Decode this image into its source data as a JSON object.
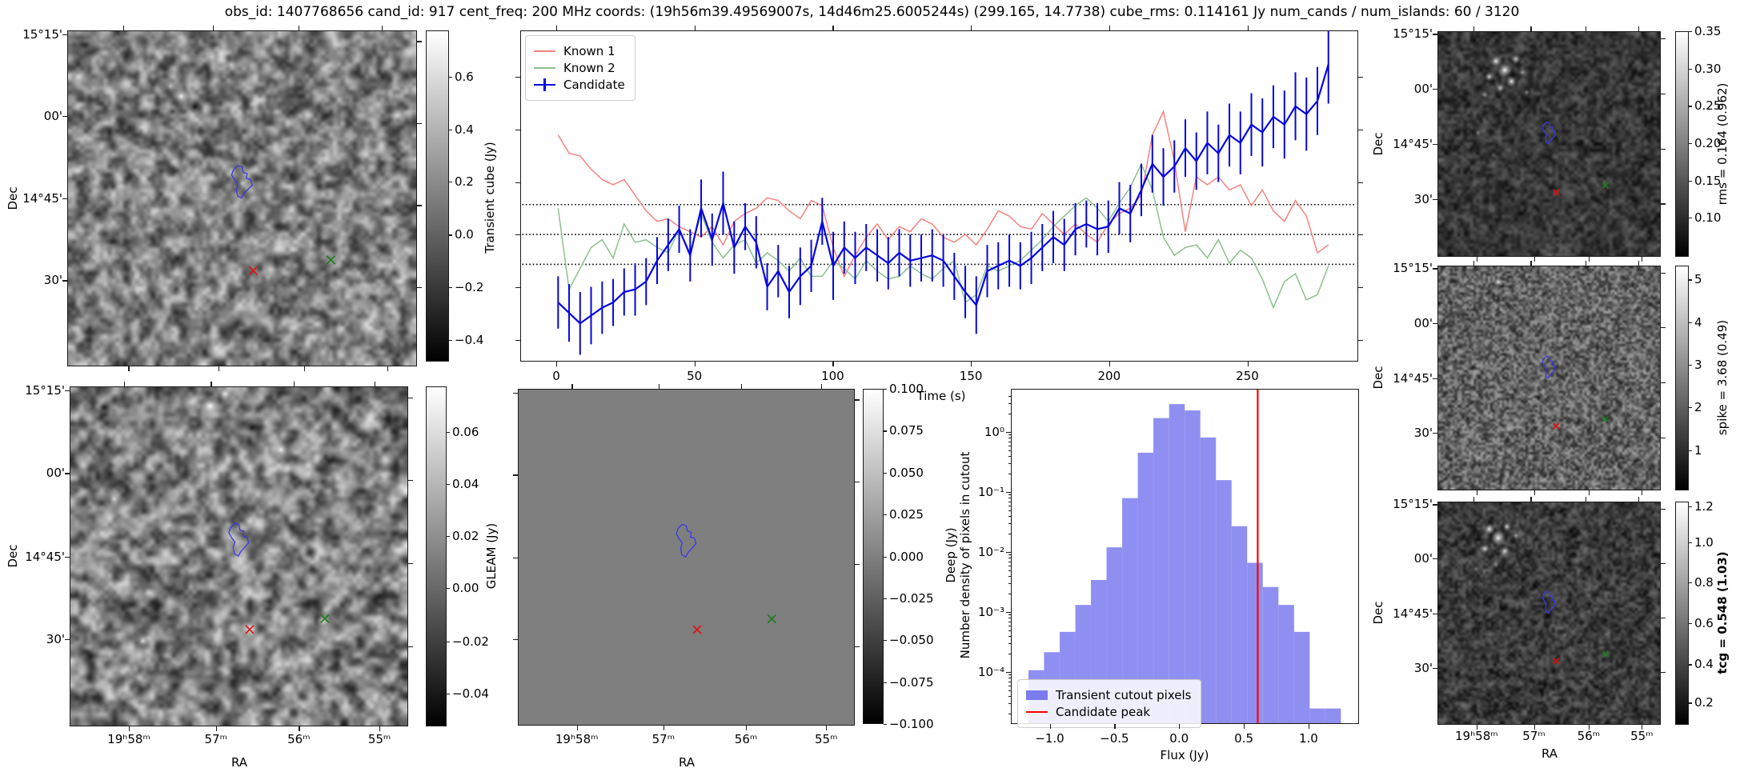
{
  "title": "obs_id: 1407768656 cand_id: 917 cent_freq: 200 MHz coords: (19h56m39.49569007s, 14d46m25.6005244s) (299.165, 14.7738) cube_rms: 0.114161 Jy num_cands / num_islands: 60 / 3120",
  "colors": {
    "known1": "#f4837d",
    "known2": "#8cbf8c",
    "candidate": "#0505e0",
    "histogram_fill": "#7b7bee",
    "candidate_peak_line": "#ff0000",
    "threshold_lines": "#000000",
    "contour": "#3a3ae0",
    "known1_marker": "#dd1111",
    "known2_marker": "#1d7a1d"
  },
  "axes": {
    "dec_label": "Dec",
    "ra_label": "RA",
    "dec_ticks": [
      "15°15'",
      "00'",
      "14°45'",
      "30'"
    ],
    "ra_ticks": [
      "19ʰ58ᵐ",
      "57ᵐ",
      "56ᵐ",
      "55ᵐ"
    ]
  },
  "colorbars": {
    "transient_cube": {
      "label": "Transient cube (Jy)",
      "ticks": [
        "0.6",
        "0.4",
        "0.2",
        "0.0",
        "−0.2",
        "−0.4"
      ]
    },
    "gleam": {
      "label": "GLEAM (Jy)",
      "ticks": [
        "0.06",
        "0.04",
        "0.02",
        "0.00",
        "−0.02",
        "−0.04"
      ]
    },
    "deep": {
      "label": "Deep (Jy)",
      "ticks": [
        "0.100",
        "0.075",
        "0.050",
        "0.025",
        "0.000",
        "−0.025",
        "−0.050",
        "−0.075",
        "−0.100"
      ]
    },
    "rms": {
      "label": "rms = 0.164 (0.962)",
      "ticks": [
        "0.35",
        "0.30",
        "0.25",
        "0.20",
        "0.15",
        "0.10"
      ]
    },
    "spike": {
      "label": "spike = 3.68 (0.49)",
      "ticks": [
        "5",
        "4",
        "3",
        "2",
        "1"
      ]
    },
    "tcg": {
      "label": "tcg = 0.548 (1.03)",
      "ticks": [
        "1.2",
        "1.0",
        "0.8",
        "0.6",
        "0.4",
        "0.2"
      ]
    }
  },
  "chart_data": [
    {
      "type": "line",
      "title": "",
      "xlabel": "Time (s)",
      "ylabel": "",
      "legend_position": "upper left",
      "xlim": [
        -13,
        291
      ],
      "ylim": [
        -0.5,
        0.78
      ],
      "xticks": [
        0,
        50,
        100,
        150,
        200,
        250
      ],
      "yticks_unlabeled": [
        0.6,
        0.4,
        0.2,
        0.0,
        -0.2,
        -0.4
      ],
      "hlines_dotted": [
        0.114161,
        0.0,
        -0.114161
      ],
      "x": [
        0,
        4,
        8,
        12,
        16,
        20,
        24,
        28,
        32,
        36,
        40,
        44,
        48,
        52,
        56,
        60,
        64,
        68,
        72,
        76,
        80,
        84,
        88,
        92,
        96,
        100,
        104,
        108,
        112,
        116,
        120,
        124,
        128,
        132,
        136,
        140,
        144,
        148,
        152,
        156,
        160,
        164,
        168,
        172,
        176,
        180,
        184,
        188,
        192,
        196,
        200,
        204,
        208,
        212,
        216,
        220,
        224,
        228,
        232,
        236,
        240,
        244,
        248,
        252,
        256,
        260,
        264,
        268,
        272,
        276,
        280
      ],
      "series": [
        {
          "name": "Known 1",
          "values": [
            0.38,
            0.31,
            0.3,
            0.25,
            0.21,
            0.19,
            0.21,
            0.15,
            0.09,
            0.05,
            0.06,
            0.03,
            0.01,
            -0.01,
            0.03,
            -0.04,
            0.05,
            0.08,
            0.1,
            0.14,
            0.13,
            0.09,
            0.06,
            0.13,
            0.11,
            -0.05,
            -0.16,
            -0.08,
            -0.01,
            0.04,
            -0.02,
            0.03,
            0.01,
            0.06,
            0.04,
            -0.01,
            -0.03,
            0.0,
            -0.04,
            0.02,
            0.09,
            0.07,
            0.03,
            0.02,
            0.08,
            0.04,
            0.0,
            0.04,
            0.0,
            -0.03,
            0.04,
            0.08,
            0.1,
            0.15,
            0.38,
            0.47,
            0.28,
            0.01,
            0.22,
            0.19,
            0.22,
            0.17,
            0.19,
            0.11,
            0.17,
            0.09,
            0.05,
            0.13,
            0.07,
            -0.07,
            -0.04
          ]
        },
        {
          "name": "Known 2",
          "values": [
            0.1,
            -0.21,
            -0.13,
            -0.05,
            -0.02,
            -0.09,
            0.04,
            -0.03,
            -0.02,
            -0.05,
            -0.07,
            0.02,
            -0.07,
            0.08,
            -0.03,
            -0.09,
            -0.04,
            -0.02,
            -0.11,
            -0.07,
            -0.1,
            -0.14,
            -0.09,
            -0.16,
            -0.16,
            -0.1,
            -0.13,
            -0.17,
            -0.1,
            -0.14,
            -0.17,
            -0.16,
            -0.12,
            -0.15,
            -0.17,
            -0.13,
            -0.1,
            -0.26,
            -0.23,
            -0.12,
            -0.14,
            -0.12,
            -0.1,
            -0.06,
            -0.02,
            0.03,
            0.07,
            0.11,
            0.14,
            0.1,
            0.05,
            0.12,
            0.18,
            0.27,
            0.17,
            -0.01,
            -0.08,
            -0.05,
            -0.04,
            -0.09,
            -0.02,
            -0.11,
            -0.06,
            -0.09,
            -0.17,
            -0.28,
            -0.18,
            -0.15,
            -0.25,
            -0.23,
            -0.12
          ]
        },
        {
          "name": "Candidate",
          "values": [
            -0.26,
            -0.3,
            -0.34,
            -0.31,
            -0.28,
            -0.26,
            -0.22,
            -0.21,
            -0.18,
            -0.1,
            -0.04,
            0.02,
            -0.08,
            0.1,
            -0.02,
            0.12,
            -0.05,
            0.03,
            -0.03,
            -0.2,
            -0.14,
            -0.22,
            -0.16,
            -0.12,
            0.05,
            -0.12,
            -0.05,
            -0.09,
            -0.05,
            -0.08,
            -0.11,
            -0.07,
            -0.1,
            -0.09,
            -0.08,
            -0.1,
            -0.16,
            -0.22,
            -0.27,
            -0.14,
            -0.12,
            -0.1,
            -0.12,
            -0.09,
            -0.05,
            -0.01,
            -0.04,
            0.02,
            0.04,
            0.02,
            0.03,
            0.1,
            0.08,
            0.17,
            0.27,
            0.22,
            0.26,
            0.33,
            0.28,
            0.35,
            0.31,
            0.38,
            0.35,
            0.42,
            0.39,
            0.45,
            0.42,
            0.49,
            0.46,
            0.51,
            0.65
          ],
          "yerr": [
            0.1,
            0.11,
            0.12,
            0.11,
            0.1,
            0.09,
            0.09,
            0.1,
            0.09,
            0.09,
            0.1,
            0.09,
            0.1,
            0.11,
            0.1,
            0.12,
            0.1,
            0.09,
            0.1,
            0.09,
            0.1,
            0.1,
            0.11,
            0.1,
            0.09,
            0.13,
            0.1,
            0.1,
            0.09,
            0.1,
            0.1,
            0.09,
            0.1,
            0.09,
            0.1,
            0.1,
            0.09,
            0.1,
            0.11,
            0.1,
            0.09,
            0.1,
            0.09,
            0.1,
            0.09,
            0.1,
            0.1,
            0.1,
            0.09,
            0.1,
            0.1,
            0.1,
            0.11,
            0.1,
            0.11,
            0.11,
            0.1,
            0.11,
            0.11,
            0.12,
            0.11,
            0.12,
            0.12,
            0.12,
            0.13,
            0.12,
            0.13,
            0.13,
            0.14,
            0.13,
            0.15
          ]
        }
      ]
    },
    {
      "type": "bar",
      "title": "",
      "xlabel": "Flux (Jy)",
      "ylabel": "Number density of pixels in cutout",
      "yscale": "log",
      "xlim": [
        -1.3,
        1.39
      ],
      "ylim": [
        1.35e-05,
        5.25
      ],
      "xticks": [
        -1.0,
        -0.5,
        0.0,
        0.5,
        1.0
      ],
      "xtick_labels": [
        "−1.0",
        "−0.5",
        "0.0",
        "0.5",
        "1.0"
      ],
      "ytick_labels": [
        "10⁰",
        "10⁻¹",
        "10⁻²",
        "10⁻³",
        "10⁻⁴"
      ],
      "bin_start": -1.17,
      "bin_width": 0.1213,
      "densities": [
        0.000105,
        0.00021,
        0.00046,
        0.0013,
        0.0034,
        0.012,
        0.08,
        0.46,
        1.75,
        3.0,
        2.35,
        0.83,
        0.16,
        0.027,
        0.0066,
        0.0026,
        0.0013,
        0.00046,
        2.4e-05,
        2.4e-05
      ],
      "candidate_peak_flux": 0.61,
      "legend": [
        "Transient cutout pixels",
        "Candidate peak"
      ],
      "legend_position": "lower left"
    }
  ]
}
